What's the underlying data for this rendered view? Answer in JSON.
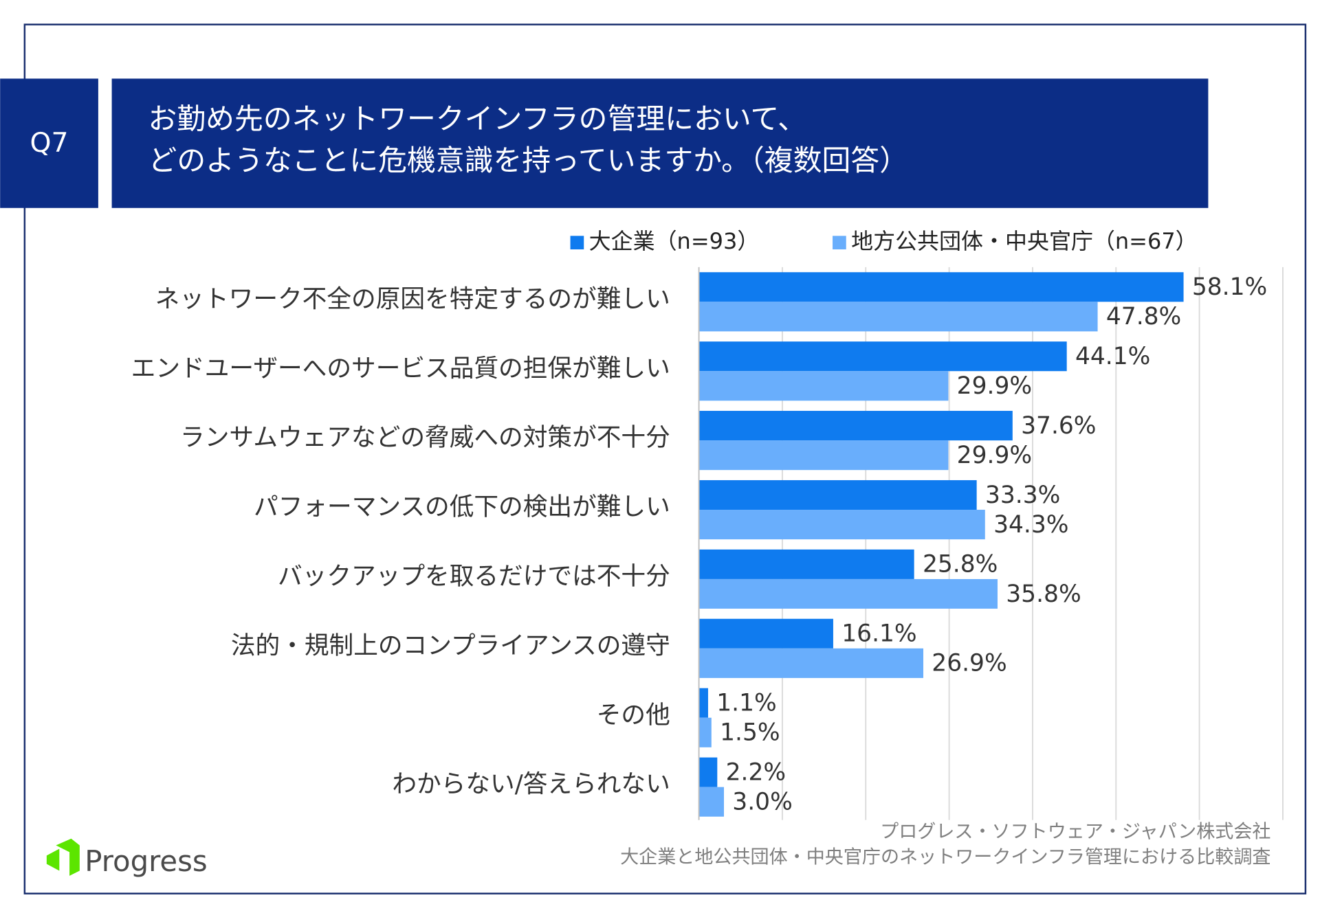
{
  "chart_data": {
    "type": "bar",
    "orientation": "horizontal",
    "question_label": "Q7",
    "title_lines": [
      "お勤め先のネットワークインフラの管理において、",
      "どのようなことに危機意識を持っていますか。（複数回答）"
    ],
    "categories": [
      "ネットワーク不全の原因を特定するのが難しい",
      "エンドユーザーへのサービス品質の担保が難しい",
      "ランサムウェアなどの脅威への対策が不十分",
      "パフォーマンスの低下の検出が難しい",
      "バックアップを取るだけでは不十分",
      "法的・規制上のコンプライアンスの遵守",
      "その他",
      "わからない/答えられない"
    ],
    "series": [
      {
        "name": "大企業（n=93）",
        "color": "#0f7bef",
        "values": [
          58.1,
          44.1,
          37.6,
          33.3,
          25.8,
          16.1,
          1.1,
          2.2
        ],
        "value_labels": [
          "58.1%",
          "44.1%",
          "37.6%",
          "33.3%",
          "25.8%",
          "16.1%",
          "1.1%",
          "2.2%"
        ]
      },
      {
        "name": "地方公共団体・中央官庁（n=67）",
        "color": "#69aefc",
        "values": [
          47.8,
          29.9,
          29.9,
          34.3,
          35.8,
          26.9,
          1.5,
          3.0
        ],
        "value_labels": [
          "47.8%",
          "29.9%",
          "29.9%",
          "34.3%",
          "35.8%",
          "26.9%",
          "1.5%",
          "3.0%"
        ]
      }
    ],
    "xlim": [
      0,
      70
    ],
    "xticks": [
      0,
      10,
      20,
      30,
      40,
      50,
      60,
      70
    ],
    "grid": true,
    "source_lines": [
      "プログレス・ソフトウェア・ジャパン株式会社",
      "大企業と地公共団体・中央官庁のネットワークインフラ管理における比較調査"
    ],
    "brand": "Progress"
  }
}
